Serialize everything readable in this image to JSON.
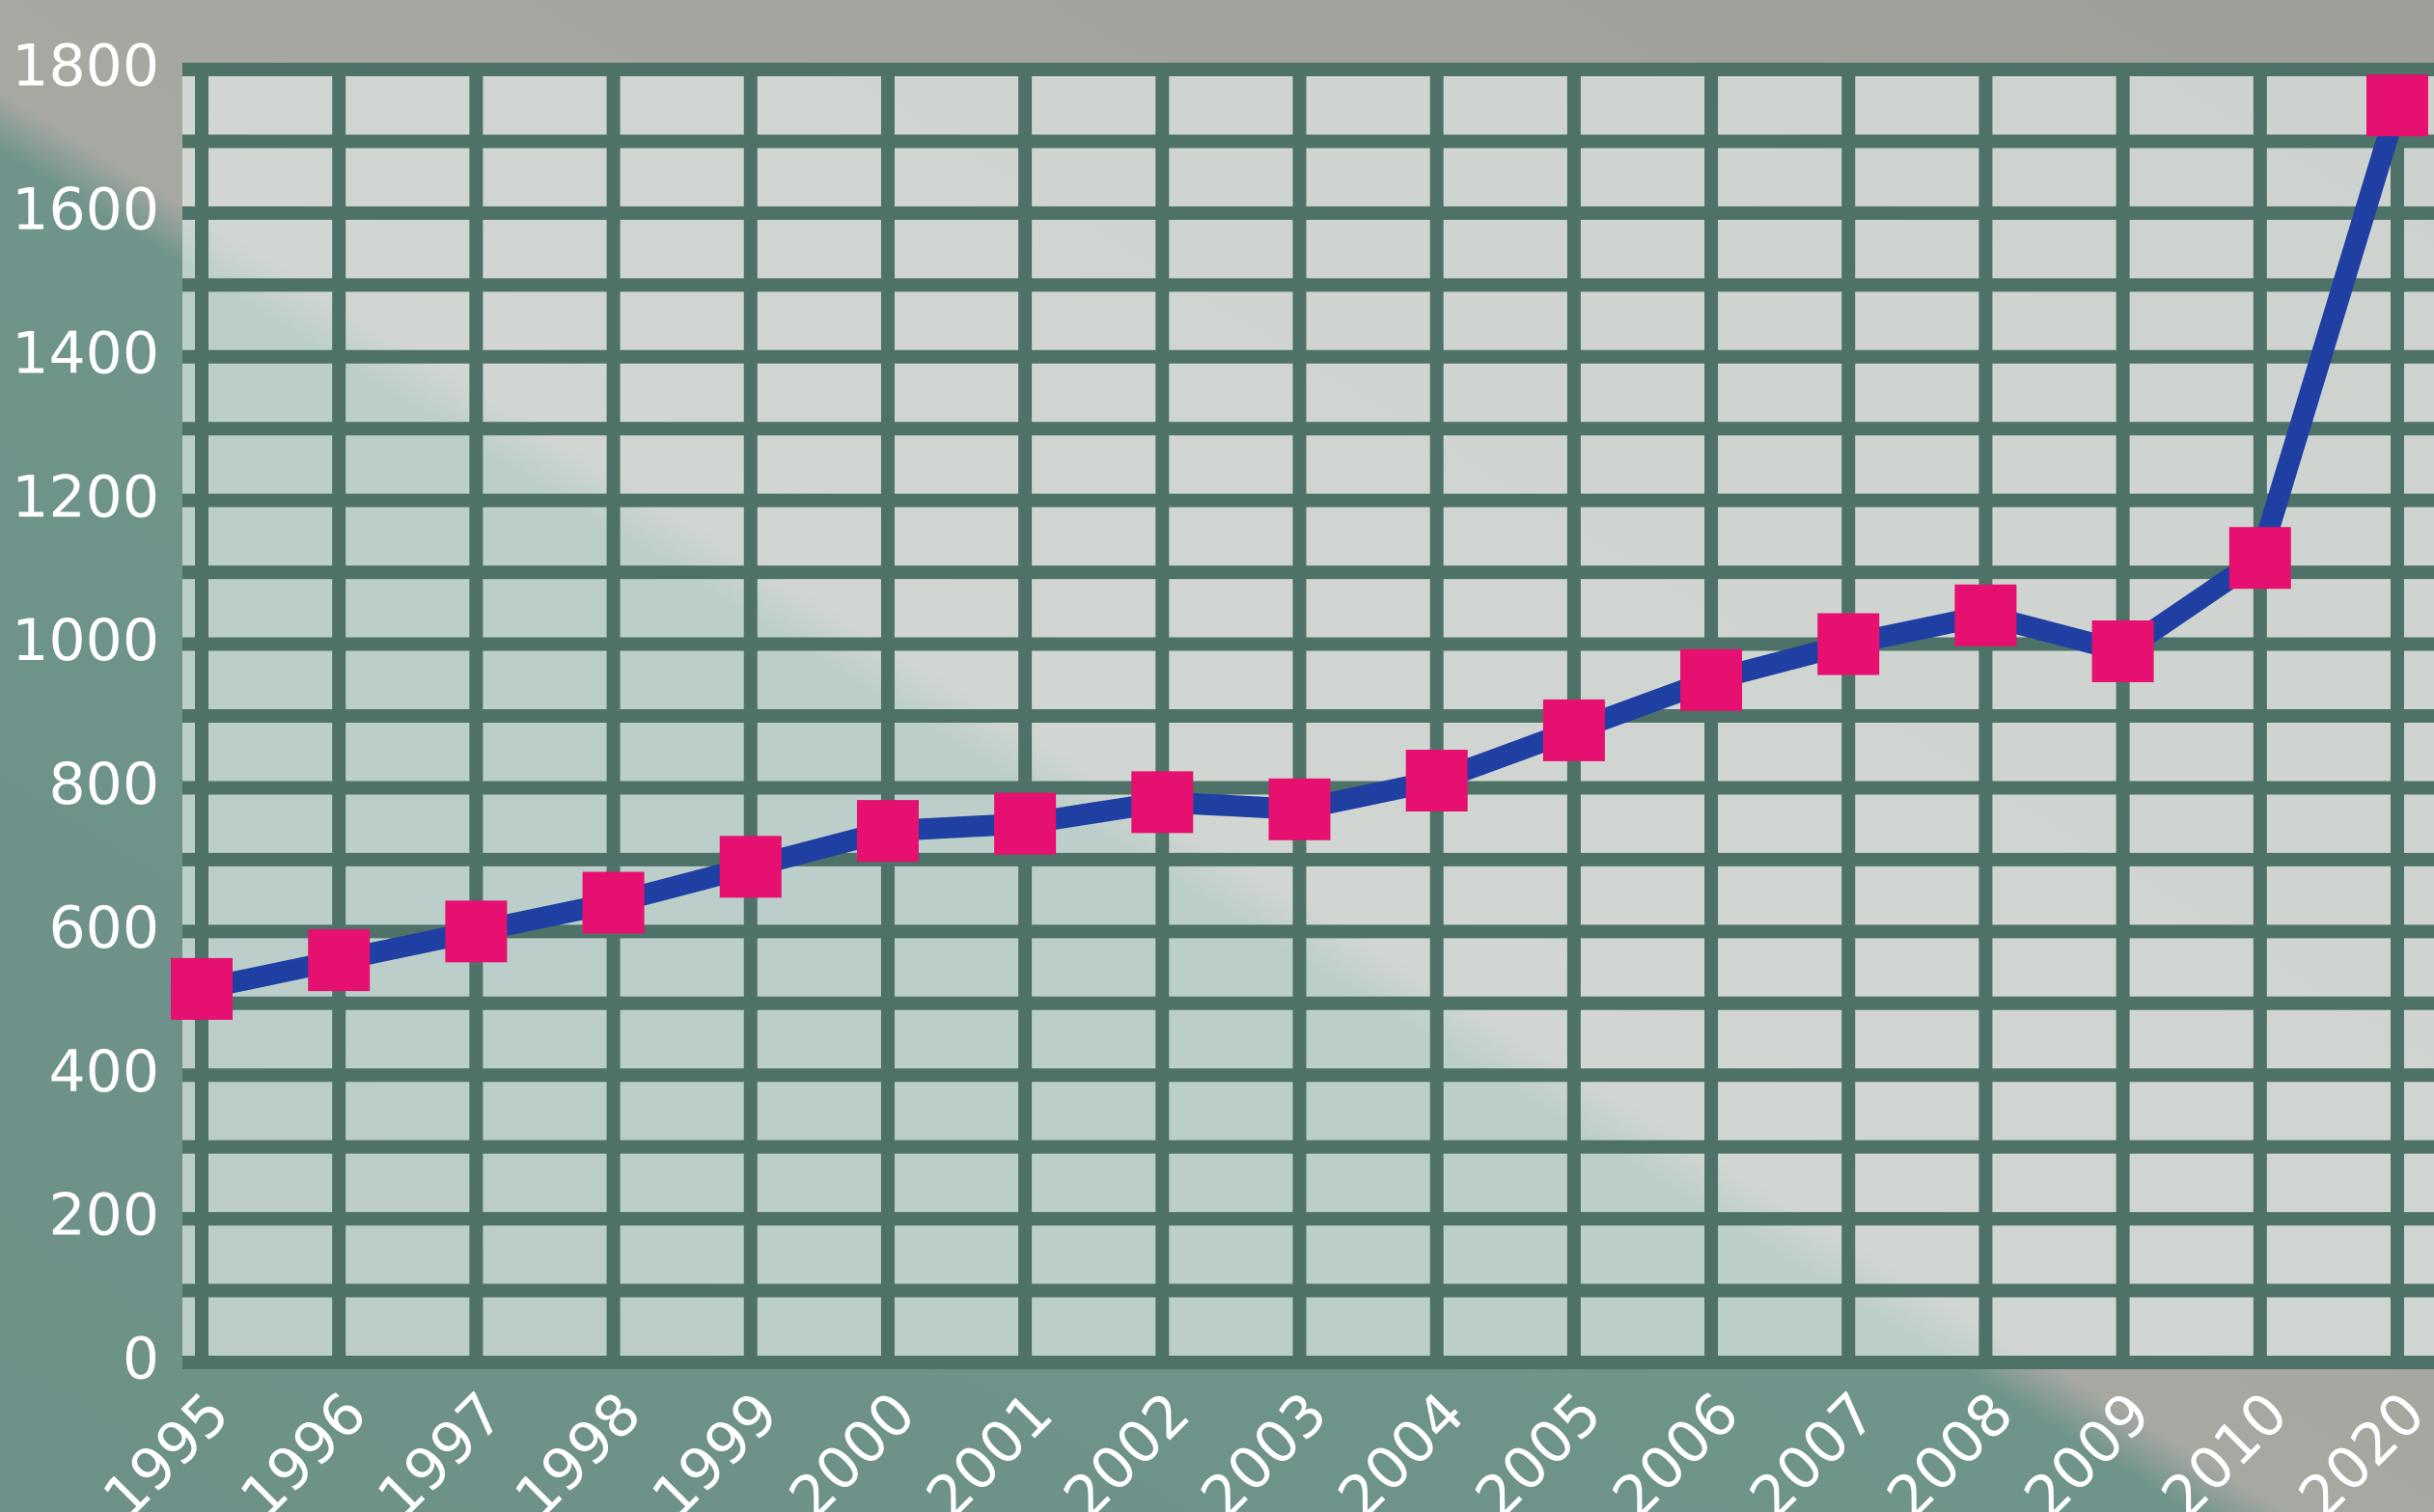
{
  "chart_data": {
    "type": "line",
    "categories": [
      "1995",
      "1996",
      "1997",
      "1998",
      "1999",
      "2000",
      "2001",
      "2002",
      "2003",
      "2004",
      "2005",
      "2006",
      "2007",
      "2008",
      "2009",
      "2010",
      "2020"
    ],
    "series": [
      {
        "values": [
          520,
          560,
          600,
          640,
          690,
          740,
          750,
          780,
          770,
          810,
          880,
          950,
          1000,
          1040,
          990,
          1120,
          1750
        ],
        "color": "#1f3fa3",
        "marker_color": "#e5106f"
      }
    ],
    "ylim": [
      0,
      1800
    ],
    "yticks": [
      0,
      200,
      400,
      600,
      800,
      1000,
      1200,
      1400,
      1600,
      1800
    ],
    "grid": true
  }
}
